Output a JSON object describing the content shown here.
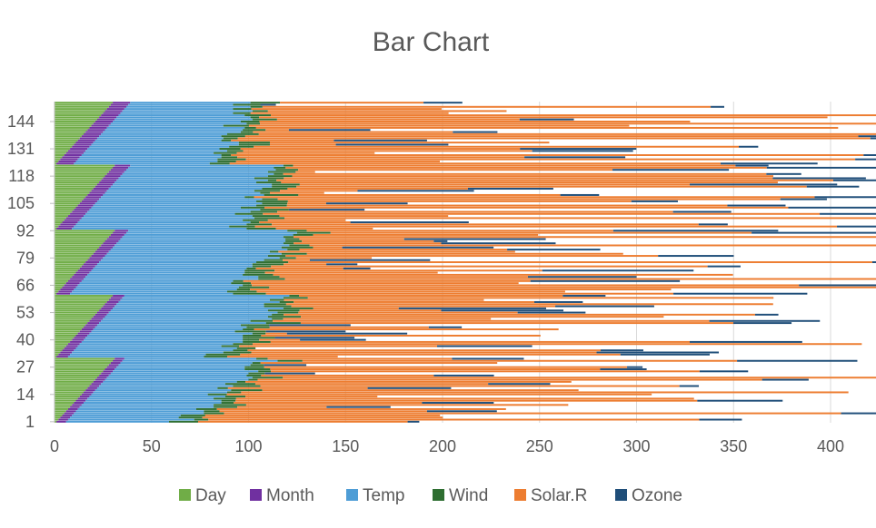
{
  "chart_data": {
    "type": "bar",
    "orientation": "horizontal",
    "stacked": true,
    "title": "Bar Chart",
    "xlabel": "",
    "ylabel": "",
    "xlim": [
      0,
      400
    ],
    "x_ticks": [
      "0",
      "50",
      "100",
      "150",
      "200",
      "250",
      "300",
      "350",
      "400"
    ],
    "y_tick_labels": [
      "1",
      "14",
      "27",
      "40",
      "53",
      "66",
      "79",
      "92",
      "105",
      "118",
      "131",
      "144"
    ],
    "y_tick_positions": [
      1,
      14,
      27,
      40,
      53,
      66,
      79,
      92,
      105,
      118,
      131,
      144
    ],
    "category_count": 153,
    "grid": "vertical",
    "legend_position": "bottom",
    "legend_order": [
      "Day",
      "Month",
      "Temp",
      "Wind",
      "Solar.R",
      "Ozone"
    ],
    "series": [
      {
        "name": "Day",
        "color": "#70AD47",
        "pattern": "calendar day of month, 1-31 (May through September)"
      },
      {
        "name": "Month",
        "color": "#7030A0",
        "pattern": "month number 5-9"
      },
      {
        "name": "Temp",
        "color": "#4E9DD6",
        "approx_range": [
          56,
          97
        ]
      },
      {
        "name": "Wind",
        "color": "#2E6E31",
        "approx_range": [
          2,
          21
        ]
      },
      {
        "name": "Solar.R",
        "color": "#ED7D31",
        "approx_range": [
          7,
          334
        ]
      },
      {
        "name": "Ozone",
        "color": "#1F4E79",
        "approx_range": [
          1,
          168
        ]
      }
    ]
  }
}
